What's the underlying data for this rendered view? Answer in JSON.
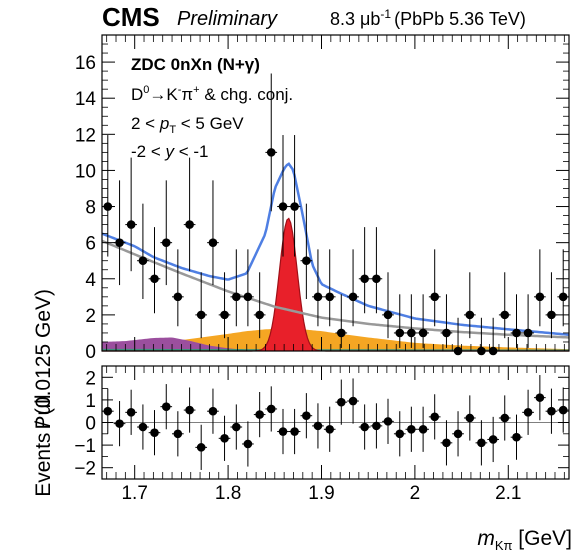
{
  "header": {
    "experiment": "CMS",
    "status": "Preliminary",
    "luminosity": "8.3 μb",
    "luminosity_exp": "-1",
    "system": "(PbPb 5.36 TeV)"
  },
  "annotations": {
    "selection": "ZDC 0nXn (N+γ)",
    "decay_main": "D",
    "decay_sup": "0",
    "decay_rest": "→K",
    "decay_kcharge": "-",
    "decay_pi": "π",
    "decay_picharge": "+",
    "decay_tail": " & chg. conj.",
    "pt_left": "2 < ",
    "pt_var": "p",
    "pt_sub": "T",
    "pt_right": " < 5 GeV",
    "y_left": "-2 < ",
    "y_var": "y",
    "y_right": " < -1"
  },
  "axes": {
    "ylabel_top": "Events / (0.0125 GeV)",
    "ylabel_bottom": "Pull",
    "xlabel_var": "m",
    "xlabel_sub": "Kπ",
    "xlabel_unit": " [GeV]"
  },
  "colors": {
    "signal": "#e8202a",
    "total_fit": "#4f7fe3",
    "combinatorial": "#999999",
    "swap_bkg": "#f5a623",
    "partial_bkg": "#9b4f9e",
    "other_bkg": "#3d8f7a",
    "data": "#000000"
  },
  "chart_data": [
    {
      "type": "scatter",
      "xlim": [
        1.665,
        2.165
      ],
      "ylim": [
        0,
        17.5
      ],
      "yticks": [
        0,
        2,
        4,
        6,
        8,
        10,
        12,
        14,
        16
      ],
      "xticks": [
        1.7,
        1.8,
        1.9,
        2.0,
        2.1
      ],
      "xtick_labels": [
        "1.7",
        "1.8",
        "1.9",
        "2",
        "2.1"
      ],
      "bin_width": 0.0125,
      "data_x": [
        1.6712,
        1.6838,
        1.6962,
        1.7088,
        1.7212,
        1.7338,
        1.7462,
        1.7588,
        1.7712,
        1.7838,
        1.7962,
        1.8088,
        1.8212,
        1.8338,
        1.8462,
        1.8588,
        1.8712,
        1.8838,
        1.8962,
        1.9088,
        1.9212,
        1.9338,
        1.9462,
        1.9588,
        1.9712,
        1.9838,
        1.9962,
        2.0088,
        2.0212,
        2.0338,
        2.0462,
        2.0588,
        2.0712,
        2.0838,
        2.0962,
        2.1088,
        2.1212,
        2.1338,
        2.1462,
        2.1588
      ],
      "data_y": [
        8,
        6,
        7,
        5,
        4,
        6,
        3,
        7,
        2,
        6,
        2,
        3,
        3,
        2,
        11,
        8,
        8,
        5,
        3,
        3,
        1,
        3,
        4,
        4,
        2,
        1,
        1,
        1,
        3,
        1,
        0,
        2,
        0,
        0,
        2,
        1,
        1,
        3,
        2,
        3
      ],
      "errors_up": [
        3.96,
        3.45,
        3.71,
        3.16,
        2.86,
        3.45,
        2.63,
        3.71,
        2.36,
        3.45,
        2.36,
        2.63,
        2.63,
        2.36,
        4.37,
        3.96,
        3.96,
        3.16,
        2.63,
        2.63,
        2.14,
        2.63,
        2.86,
        2.86,
        2.36,
        2.14,
        2.14,
        2.14,
        2.63,
        2.14,
        1.84,
        2.36,
        1.84,
        1.84,
        2.36,
        2.14,
        2.14,
        2.63,
        2.36,
        2.63
      ],
      "errors_down": [
        2.77,
        2.35,
        2.58,
        2.12,
        1.91,
        2.35,
        1.63,
        2.58,
        1.29,
        2.35,
        1.29,
        1.63,
        1.63,
        1.29,
        3.26,
        2.77,
        2.77,
        2.12,
        1.63,
        1.63,
        0.83,
        1.63,
        1.91,
        1.91,
        1.29,
        0.83,
        0.83,
        0.83,
        1.63,
        0.83,
        0,
        1.29,
        0,
        0,
        1.29,
        0.83,
        0.83,
        1.63,
        1.29,
        1.63
      ],
      "combinatorial": {
        "x": [
          1.665,
          1.7,
          1.75,
          1.8,
          1.85,
          1.9,
          1.95,
          2.0,
          2.05,
          2.1,
          2.165
        ],
        "y": [
          6.1,
          5.35,
          4.3,
          3.3,
          2.45,
          1.85,
          1.5,
          1.25,
          1.05,
          0.9,
          0.75
        ]
      },
      "swap": {
        "x": [
          1.665,
          1.7,
          1.75,
          1.8,
          1.82,
          1.84,
          1.86,
          1.88,
          1.9,
          1.92,
          1.95,
          2.0,
          2.05,
          2.1,
          2.165
        ],
        "y": [
          0.15,
          0.3,
          0.6,
          0.95,
          1.1,
          1.2,
          1.25,
          1.2,
          1.1,
          0.95,
          0.75,
          0.45,
          0.3,
          0.2,
          0.1
        ]
      },
      "partial": {
        "x": [
          1.665,
          1.69,
          1.72,
          1.74,
          1.76,
          1.78,
          1.8,
          1.82,
          1.84
        ],
        "y": [
          0.5,
          0.55,
          0.72,
          0.75,
          0.55,
          0.3,
          0.15,
          0.05,
          0.0
        ]
      },
      "other": {
        "x": [
          1.665,
          1.9,
          2.165
        ],
        "y": [
          0.12,
          0.1,
          0.08
        ]
      },
      "signal": {
        "mean": 1.8645,
        "sigma": 0.0095,
        "peak": 7.35
      },
      "total_fit": {
        "x": [
          1.665,
          1.7,
          1.72,
          1.75,
          1.78,
          1.8,
          1.82,
          1.84,
          1.85,
          1.86,
          1.8645,
          1.87,
          1.88,
          1.89,
          1.9,
          1.92,
          1.95,
          2.0,
          2.05,
          2.1,
          2.165
        ],
        "y": [
          6.5,
          5.8,
          5.2,
          4.6,
          4.15,
          3.95,
          4.3,
          6.5,
          9.0,
          10.1,
          10.4,
          10.0,
          7.5,
          4.8,
          3.7,
          3.2,
          2.5,
          1.8,
          1.45,
          1.2,
          0.9
        ]
      }
    },
    {
      "type": "scatter",
      "xlim": [
        1.665,
        2.165
      ],
      "ylim": [
        -2.5,
        2.5
      ],
      "yticks": [
        -2,
        -1,
        0,
        1,
        2
      ],
      "ytick_labels": [
        "−2",
        "−1",
        "0",
        "1",
        "2"
      ],
      "pull_x": [
        1.6712,
        1.6838,
        1.6962,
        1.7088,
        1.7212,
        1.7338,
        1.7462,
        1.7588,
        1.7712,
        1.7838,
        1.7962,
        1.8088,
        1.8212,
        1.8338,
        1.8462,
        1.8588,
        1.8712,
        1.8838,
        1.8962,
        1.9088,
        1.9212,
        1.9338,
        1.9462,
        1.9588,
        1.9712,
        1.9838,
        1.9962,
        2.0088,
        2.0212,
        2.0338,
        2.0462,
        2.0588,
        2.0712,
        2.0838,
        2.0962,
        2.1088,
        2.1212,
        2.1338,
        2.1462,
        2.1588
      ],
      "pull_y": [
        0.5,
        -0.05,
        0.45,
        -0.2,
        -0.45,
        0.7,
        -0.5,
        0.55,
        -1.1,
        0.5,
        -0.7,
        -0.2,
        -0.95,
        0.35,
        0.6,
        -0.4,
        -0.4,
        0.3,
        -0.15,
        -0.3,
        0.9,
        0.95,
        -0.2,
        -0.15,
        0.05,
        -0.5,
        -0.3,
        -0.3,
        0.25,
        -0.9,
        -0.5,
        0.2,
        -0.9,
        -0.75,
        0.2,
        -0.65,
        0.45,
        1.1,
        0.5,
        0.55
      ],
      "pull_err": [
        1,
        1,
        1,
        1,
        1,
        1,
        1,
        1,
        1,
        1,
        1,
        1,
        1,
        1,
        1,
        1,
        1,
        1,
        1,
        1,
        1,
        1,
        1,
        1,
        1,
        1,
        1,
        1,
        1,
        1,
        1,
        1,
        1,
        1,
        1,
        1,
        1,
        1,
        1,
        1
      ]
    }
  ]
}
